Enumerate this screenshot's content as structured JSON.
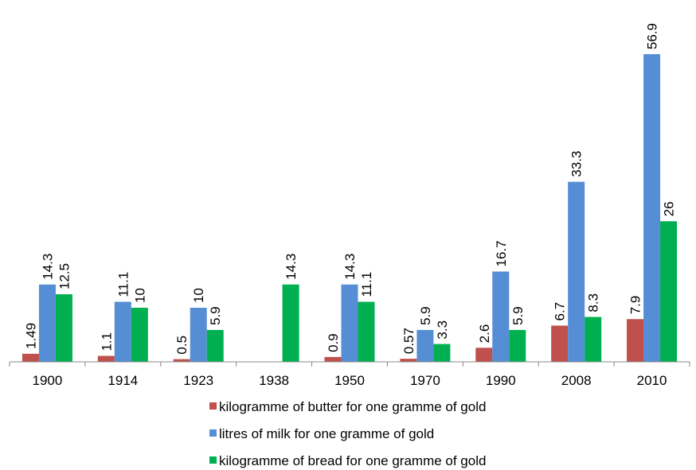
{
  "chart_data": {
    "type": "bar",
    "categories": [
      "1900",
      "1914",
      "1923",
      "1938",
      "1950",
      "1970",
      "1990",
      "2008",
      "2010"
    ],
    "series": [
      {
        "name": "kilogramme of butter for one gramme of gold",
        "color": "#c0504d",
        "values": [
          1.49,
          1.1,
          0.5,
          null,
          0.9,
          0.57,
          2.6,
          6.7,
          7.9
        ]
      },
      {
        "name": "litres of milk for one gramme of gold",
        "color": "#558ed5",
        "values": [
          14.3,
          11.1,
          10,
          null,
          14.3,
          5.9,
          16.7,
          33.3,
          56.9
        ]
      },
      {
        "name": "kilogramme of bread for one gramme of gold",
        "color": "#00b050",
        "values": [
          12.5,
          10,
          5.9,
          14.3,
          11.1,
          3.3,
          5.9,
          8.3,
          26
        ]
      }
    ],
    "legend": "bottom"
  }
}
